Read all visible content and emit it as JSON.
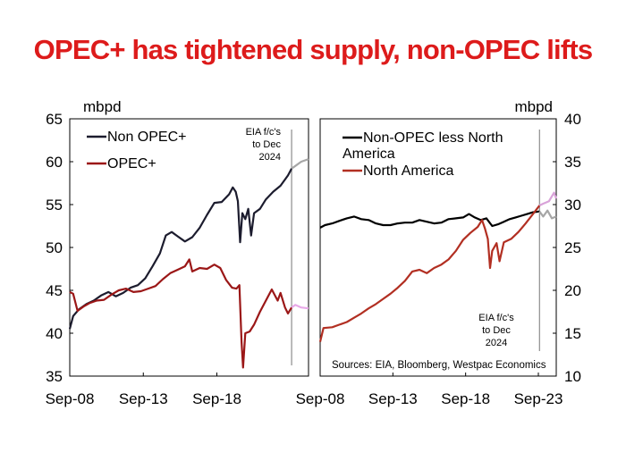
{
  "title": "OPEC+ has tightened supply, non-OPEC lifts",
  "chart_data": [
    {
      "type": "line",
      "unit_label": "mbpd",
      "ylim": [
        35,
        65
      ],
      "yticks": [
        "65",
        "60",
        "55",
        "50",
        "45",
        "40",
        "35"
      ],
      "xlim": [
        2008.67,
        2024.9
      ],
      "xticks": [
        "Sep-08",
        "Sep-13",
        "Sep-18"
      ],
      "annotation": [
        "EIA f/c's",
        "to Dec",
        "2024"
      ],
      "forecast_start": 2023.75,
      "legend": "top-left",
      "series": [
        {
          "name": "Non OPEC+",
          "color": "#1c1c2e",
          "forecast_color": "#a6a6a6",
          "values": [
            [
              2008.67,
              40.5
            ],
            [
              2008.9,
              42.0
            ],
            [
              2009.3,
              42.8
            ],
            [
              2009.8,
              43.4
            ],
            [
              2010.3,
              43.8
            ],
            [
              2010.8,
              44.4
            ],
            [
              2011.3,
              44.8
            ],
            [
              2011.8,
              44.3
            ],
            [
              2012.3,
              44.7
            ],
            [
              2012.8,
              45.3
            ],
            [
              2013.3,
              45.6
            ],
            [
              2013.8,
              46.4
            ],
            [
              2014.3,
              47.8
            ],
            [
              2014.8,
              49.3
            ],
            [
              2015.2,
              51.4
            ],
            [
              2015.6,
              51.8
            ],
            [
              2016.0,
              51.3
            ],
            [
              2016.5,
              50.7
            ],
            [
              2017.0,
              51.2
            ],
            [
              2017.5,
              52.3
            ],
            [
              2018.0,
              53.8
            ],
            [
              2018.5,
              55.2
            ],
            [
              2019.0,
              55.3
            ],
            [
              2019.5,
              56.2
            ],
            [
              2019.75,
              57.0
            ],
            [
              2019.95,
              56.5
            ],
            [
              2020.1,
              55.4
            ],
            [
              2020.25,
              50.6
            ],
            [
              2020.4,
              54.0
            ],
            [
              2020.6,
              53.3
            ],
            [
              2020.8,
              54.5
            ],
            [
              2021.0,
              51.4
            ],
            [
              2021.2,
              54.0
            ],
            [
              2021.6,
              54.5
            ],
            [
              2022.0,
              55.6
            ],
            [
              2022.5,
              56.5
            ],
            [
              2023.0,
              57.2
            ],
            [
              2023.5,
              58.4
            ],
            [
              2023.75,
              59.2
            ],
            [
              2024.0,
              59.5
            ],
            [
              2024.4,
              60.0
            ],
            [
              2024.9,
              60.3
            ]
          ]
        },
        {
          "name": "OPEC+",
          "color": "#9b1717",
          "forecast_color": "#e8a9e8",
          "values": [
            [
              2008.67,
              44.8
            ],
            [
              2008.9,
              44.6
            ],
            [
              2009.2,
              42.6
            ],
            [
              2009.6,
              43.1
            ],
            [
              2010.0,
              43.5
            ],
            [
              2010.5,
              43.8
            ],
            [
              2011.0,
              43.9
            ],
            [
              2011.5,
              44.5
            ],
            [
              2012.0,
              45.0
            ],
            [
              2012.5,
              45.2
            ],
            [
              2013.0,
              44.8
            ],
            [
              2013.5,
              44.9
            ],
            [
              2014.0,
              45.2
            ],
            [
              2014.5,
              45.5
            ],
            [
              2015.0,
              46.3
            ],
            [
              2015.5,
              47.0
            ],
            [
              2016.0,
              47.4
            ],
            [
              2016.5,
              47.8
            ],
            [
              2016.8,
              48.6
            ],
            [
              2017.0,
              47.2
            ],
            [
              2017.5,
              47.6
            ],
            [
              2018.0,
              47.5
            ],
            [
              2018.5,
              48.0
            ],
            [
              2018.9,
              47.6
            ],
            [
              2019.3,
              46.2
            ],
            [
              2019.7,
              45.3
            ],
            [
              2020.0,
              45.2
            ],
            [
              2020.2,
              45.6
            ],
            [
              2020.35,
              39.0
            ],
            [
              2020.45,
              36.0
            ],
            [
              2020.6,
              40.0
            ],
            [
              2020.9,
              40.2
            ],
            [
              2021.2,
              41.0
            ],
            [
              2021.6,
              42.5
            ],
            [
              2022.0,
              43.8
            ],
            [
              2022.4,
              45.1
            ],
            [
              2022.8,
              43.8
            ],
            [
              2023.0,
              44.7
            ],
            [
              2023.3,
              43.0
            ],
            [
              2023.5,
              42.3
            ],
            [
              2023.75,
              43.0
            ],
            [
              2024.0,
              43.3
            ],
            [
              2024.4,
              43.0
            ],
            [
              2024.9,
              42.9
            ]
          ]
        }
      ]
    },
    {
      "type": "line",
      "unit_label": "mbpd",
      "ylim": [
        10,
        40
      ],
      "yticks": [
        "40",
        "35",
        "30",
        "25",
        "20",
        "15",
        "10"
      ],
      "xlim": [
        2008.67,
        2024.9
      ],
      "xticks": [
        "Sep-08",
        "Sep-13",
        "Sep-18",
        "Sep-23"
      ],
      "annotation": [
        "EIA f/c's",
        "to Dec",
        "2024"
      ],
      "source": "Sources: EIA, Bloomberg, Westpac Economics",
      "forecast_start": 2023.75,
      "legend": "top-left",
      "series": [
        {
          "name": "Non-OPEC less North America",
          "name_lines": [
            "Non-OPEC less North",
            "America"
          ],
          "color": "#000000",
          "forecast_color": "#a6a6a6",
          "values": [
            [
              2008.67,
              27.3
            ],
            [
              2009.0,
              27.6
            ],
            [
              2009.5,
              27.8
            ],
            [
              2010.0,
              28.1
            ],
            [
              2010.5,
              28.4
            ],
            [
              2011.0,
              28.6
            ],
            [
              2011.5,
              28.3
            ],
            [
              2012.0,
              28.2
            ],
            [
              2012.5,
              27.8
            ],
            [
              2013.0,
              27.6
            ],
            [
              2013.5,
              27.6
            ],
            [
              2014.0,
              27.8
            ],
            [
              2014.5,
              27.9
            ],
            [
              2015.0,
              27.9
            ],
            [
              2015.5,
              28.2
            ],
            [
              2016.0,
              28.0
            ],
            [
              2016.5,
              27.8
            ],
            [
              2017.0,
              27.9
            ],
            [
              2017.5,
              28.3
            ],
            [
              2018.0,
              28.4
            ],
            [
              2018.5,
              28.5
            ],
            [
              2018.9,
              28.9
            ],
            [
              2019.3,
              28.5
            ],
            [
              2019.7,
              28.2
            ],
            [
              2020.1,
              28.4
            ],
            [
              2020.5,
              27.5
            ],
            [
              2020.9,
              27.7
            ],
            [
              2021.3,
              28.0
            ],
            [
              2021.7,
              28.3
            ],
            [
              2022.1,
              28.5
            ],
            [
              2022.5,
              28.7
            ],
            [
              2022.9,
              28.9
            ],
            [
              2023.3,
              29.1
            ],
            [
              2023.75,
              29.2
            ],
            [
              2024.0,
              28.6
            ],
            [
              2024.3,
              29.3
            ],
            [
              2024.6,
              28.4
            ],
            [
              2024.9,
              28.6
            ]
          ]
        },
        {
          "name": "North America",
          "name_lines": [
            "North America"
          ],
          "color": "#b22f22",
          "forecast_color": "#d9a3d9",
          "values": [
            [
              2008.67,
              14.0
            ],
            [
              2008.9,
              15.6
            ],
            [
              2009.5,
              15.7
            ],
            [
              2010.0,
              16.0
            ],
            [
              2010.5,
              16.3
            ],
            [
              2011.0,
              16.8
            ],
            [
              2011.5,
              17.3
            ],
            [
              2012.0,
              17.9
            ],
            [
              2012.5,
              18.4
            ],
            [
              2013.0,
              19.0
            ],
            [
              2013.5,
              19.6
            ],
            [
              2014.0,
              20.3
            ],
            [
              2014.5,
              21.1
            ],
            [
              2015.0,
              22.2
            ],
            [
              2015.5,
              22.4
            ],
            [
              2016.0,
              22.0
            ],
            [
              2016.5,
              22.6
            ],
            [
              2017.0,
              23.0
            ],
            [
              2017.5,
              23.6
            ],
            [
              2018.0,
              24.6
            ],
            [
              2018.5,
              25.9
            ],
            [
              2019.0,
              26.7
            ],
            [
              2019.5,
              27.4
            ],
            [
              2019.8,
              28.2
            ],
            [
              2020.0,
              27.2
            ],
            [
              2020.2,
              26.0
            ],
            [
              2020.35,
              22.6
            ],
            [
              2020.5,
              24.6
            ],
            [
              2020.8,
              25.5
            ],
            [
              2021.0,
              23.4
            ],
            [
              2021.3,
              25.6
            ],
            [
              2021.8,
              26.0
            ],
            [
              2022.3,
              26.8
            ],
            [
              2022.8,
              27.8
            ],
            [
              2023.3,
              28.9
            ],
            [
              2023.75,
              29.9
            ],
            [
              2024.0,
              30.1
            ],
            [
              2024.4,
              30.4
            ],
            [
              2024.75,
              31.4
            ],
            [
              2024.9,
              30.7
            ]
          ]
        }
      ]
    }
  ]
}
